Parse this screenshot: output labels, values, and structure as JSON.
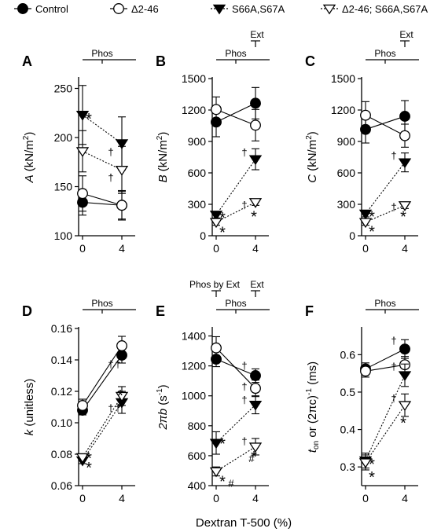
{
  "legend": [
    {
      "label": "Control",
      "marker": "circle",
      "fill": "#000000",
      "line": "solid"
    },
    {
      "label": "Δ2-46",
      "marker": "circle",
      "fill": "#ffffff",
      "line": "solid"
    },
    {
      "label": "S66A,S67A",
      "marker": "triangle-down",
      "fill": "#000000",
      "line": "dotted"
    },
    {
      "label": "Δ2-46; S66A,S67A",
      "marker": "triangle-down",
      "fill": "#ffffff",
      "line": "dotted"
    }
  ],
  "shared_xlabel": "Dextran T-500 (%)",
  "chart_data": [
    {
      "type": "line",
      "panel": "A",
      "ylabel_main": "A",
      "ylabel_unit": " (kN/m",
      "ylabel_sup": "2",
      "ylabel_end": ")",
      "x": [
        0,
        4
      ],
      "xticks": [
        "0",
        "4"
      ],
      "ylim": [
        100,
        260
      ],
      "yticks": [
        100,
        150,
        200,
        250
      ],
      "series": [
        {
          "name": "Control",
          "values": [
            134,
            131
          ],
          "err": [
            13,
            14
          ]
        },
        {
          "name": "Δ2-46",
          "values": [
            143,
            131
          ],
          "err": [
            18,
            15
          ]
        },
        {
          "name": "S66A,S67A",
          "values": [
            223,
            194
          ],
          "err": [
            30,
            27
          ]
        },
        {
          "name": "Δ2-46; S66A,S67A",
          "values": [
            186,
            167
          ],
          "err": [
            21,
            24
          ]
        }
      ],
      "annotations": [
        {
          "text": "Phos",
          "kind": "bracket-full"
        },
        {
          "text": "*",
          "x": 0,
          "y": 220
        },
        {
          "text": "†",
          "x": 4,
          "y": 188
        },
        {
          "text": "†",
          "x": 4,
          "y": 162
        }
      ]
    },
    {
      "type": "line",
      "panel": "B",
      "ylabel_main": "B",
      "ylabel_unit": " (kN/m",
      "ylabel_sup": "2",
      "ylabel_end": ")",
      "x": [
        0,
        4
      ],
      "xticks": [
        "0",
        "4"
      ],
      "ylim": [
        0,
        1500
      ],
      "yticks": [
        0,
        300,
        600,
        900,
        1200,
        1500
      ],
      "series": [
        {
          "name": "Control",
          "values": [
            1085,
            1265
          ],
          "err": [
            140,
            150
          ]
        },
        {
          "name": "Δ2-46",
          "values": [
            1205,
            1055
          ],
          "err": [
            120,
            150
          ]
        },
        {
          "name": "S66A,S67A",
          "values": [
            200,
            730
          ],
          "err": [
            30,
            100
          ]
        },
        {
          "name": "Δ2-46; S66A,S67A",
          "values": [
            130,
            320
          ],
          "err": [
            30,
            30
          ]
        }
      ],
      "annotations": [
        {
          "text": "Phos",
          "kind": "bracket-full"
        },
        {
          "text": "Ext",
          "kind": "bracket-right"
        },
        {
          "text": "*",
          "x": 0,
          "y": 180
        },
        {
          "text": "*",
          "x": 0,
          "y": 40
        },
        {
          "text": "†",
          "x": 4,
          "y": 820
        },
        {
          "text": "†",
          "x": 4,
          "y": 320
        },
        {
          "text": "*",
          "x": 4,
          "y": 190
        }
      ]
    },
    {
      "type": "line",
      "panel": "C",
      "ylabel_main": "C",
      "ylabel_unit": " (kN/m",
      "ylabel_sup": "2",
      "ylabel_end": ")",
      "x": [
        0,
        4
      ],
      "xticks": [
        "0",
        "4"
      ],
      "ylim": [
        0,
        1500
      ],
      "yticks": [
        0,
        300,
        600,
        900,
        1200,
        1500
      ],
      "series": [
        {
          "name": "Control",
          "values": [
            1015,
            1140
          ],
          "err": [
            130,
            150
          ]
        },
        {
          "name": "Δ2-46",
          "values": [
            1150,
            955
          ],
          "err": [
            130,
            110
          ]
        },
        {
          "name": "S66A,S67A",
          "values": [
            210,
            700
          ],
          "err": [
            30,
            90
          ]
        },
        {
          "name": "Δ2-46; S66A,S67A",
          "values": [
            130,
            290
          ],
          "err": [
            30,
            30
          ]
        }
      ],
      "annotations": [
        {
          "text": "Phos",
          "kind": "bracket-full"
        },
        {
          "text": "Ext",
          "kind": "bracket-right"
        },
        {
          "text": "*",
          "x": 0,
          "y": 190
        },
        {
          "text": "*",
          "x": 0,
          "y": 50
        },
        {
          "text": "†",
          "x": 4,
          "y": 790
        },
        {
          "text": "†",
          "x": 4,
          "y": 300
        },
        {
          "text": "*",
          "x": 4,
          "y": 190
        }
      ]
    },
    {
      "type": "line",
      "panel": "D",
      "ylabel_main": "k",
      "ylabel_unit": " (unitless)",
      "ylabel_sup": "",
      "ylabel_end": "",
      "x": [
        0,
        4
      ],
      "xticks": [
        "0",
        "4"
      ],
      "ylim": [
        0.06,
        0.16
      ],
      "yticks": [
        0.06,
        0.08,
        0.1,
        0.12,
        0.14,
        0.16
      ],
      "series": [
        {
          "name": "Control",
          "values": [
            0.108,
            0.143
          ],
          "err": [
            0.003,
            0.005
          ]
        },
        {
          "name": "Δ2-46",
          "values": [
            0.111,
            0.149
          ],
          "err": [
            0.004,
            0.006
          ]
        },
        {
          "name": "S66A,S67A",
          "values": [
            0.076,
            0.113
          ],
          "err": [
            0.002,
            0.007
          ]
        },
        {
          "name": "Δ2-46; S66A,S67A",
          "values": [
            0.078,
            0.117
          ],
          "err": [
            0.002,
            0.006
          ]
        }
      ],
      "annotations": [
        {
          "text": "Phos",
          "kind": "bracket-full"
        },
        {
          "text": "†",
          "x": 4,
          "y": 0.139
        },
        {
          "text": "†",
          "x": 4,
          "y": 0.139
        },
        {
          "text": "†",
          "x": 4,
          "y": 0.111
        },
        {
          "text": "†",
          "x": 4,
          "y": 0.111
        },
        {
          "text": "*",
          "x": 4,
          "y": 0.118
        },
        {
          "text": "*",
          "x": 4,
          "y": 0.11
        },
        {
          "text": "*",
          "x": 0,
          "y": 0.078
        },
        {
          "text": "*",
          "x": 0,
          "y": 0.072
        }
      ]
    },
    {
      "type": "line",
      "panel": "E",
      "ylabel_main": "2πb",
      "ylabel_unit": " (s",
      "ylabel_sup": "-1",
      "ylabel_end": ")",
      "x": [
        0,
        4
      ],
      "xticks": [
        "0",
        "4"
      ],
      "ylim": [
        400,
        1450
      ],
      "yticks": [
        400,
        600,
        800,
        1000,
        1200,
        1400
      ],
      "series": [
        {
          "name": "Control",
          "values": [
            1245,
            1135
          ],
          "err": [
            50,
            45
          ]
        },
        {
          "name": "Δ2-46",
          "values": [
            1320,
            1050
          ],
          "err": [
            75,
            55
          ]
        },
        {
          "name": "S66A,S67A",
          "values": [
            685,
            940
          ],
          "err": [
            75,
            60
          ]
        },
        {
          "name": "Δ2-46; S66A,S67A",
          "values": [
            495,
            660
          ],
          "err": [
            30,
            55
          ]
        }
      ],
      "annotations": [
        {
          "text": "Phos by Ext",
          "kind": "bracket-left"
        },
        {
          "text": "Ext",
          "kind": "bracket-right"
        },
        {
          "text": "Phos",
          "kind": "bracket-full"
        },
        {
          "text": "†",
          "x": 4,
          "y": 1220
        },
        {
          "text": "†",
          "x": 4,
          "y": 1080
        },
        {
          "text": "†",
          "x": 4,
          "y": 990
        },
        {
          "text": "†",
          "x": 4,
          "y": 715
        },
        {
          "text": "*",
          "x": 0,
          "y": 685
        },
        {
          "text": "*",
          "x": 0,
          "y": 435
        },
        {
          "text": "#",
          "x": 0,
          "y": 435
        },
        {
          "text": "*",
          "x": 4,
          "y": 600
        },
        {
          "text": "#",
          "x": 4,
          "y": 600
        }
      ]
    },
    {
      "type": "line",
      "panel": "F",
      "ylabel_main": "t",
      "ylabel_sub": "on",
      "ylabel_unit": " or (2πc)",
      "ylabel_sup": "-1",
      "ylabel_end": " (ms)",
      "x": [
        0,
        4
      ],
      "xticks": [
        "0",
        "4"
      ],
      "ylim": [
        0.25,
        0.67
      ],
      "yticks": [
        0.3,
        0.4,
        0.5,
        0.6
      ],
      "series": [
        {
          "name": "Control",
          "values": [
            0.562,
            0.615
          ],
          "err": [
            0.016,
            0.025
          ]
        },
        {
          "name": "Δ2-46",
          "values": [
            0.556,
            0.573
          ],
          "err": [
            0.016,
            0.022
          ]
        },
        {
          "name": "S66A,S67A",
          "values": [
            0.317,
            0.545
          ],
          "err": [
            0.02,
            0.03
          ]
        },
        {
          "name": "Δ2-46; S66A,S67A",
          "values": [
            0.312,
            0.465
          ],
          "err": [
            0.02,
            0.03
          ]
        }
      ],
      "annotations": [
        {
          "text": "Phos",
          "kind": "bracket-full"
        },
        {
          "text": "†",
          "x": 4,
          "y": 0.645
        },
        {
          "text": "†",
          "x": 4,
          "y": 0.575
        },
        {
          "text": "†",
          "x": 4,
          "y": 0.49
        },
        {
          "text": "*",
          "x": 4,
          "y": 0.42
        },
        {
          "text": "*",
          "x": 0,
          "y": 0.31
        },
        {
          "text": "*",
          "x": 0,
          "y": 0.275
        }
      ]
    }
  ]
}
